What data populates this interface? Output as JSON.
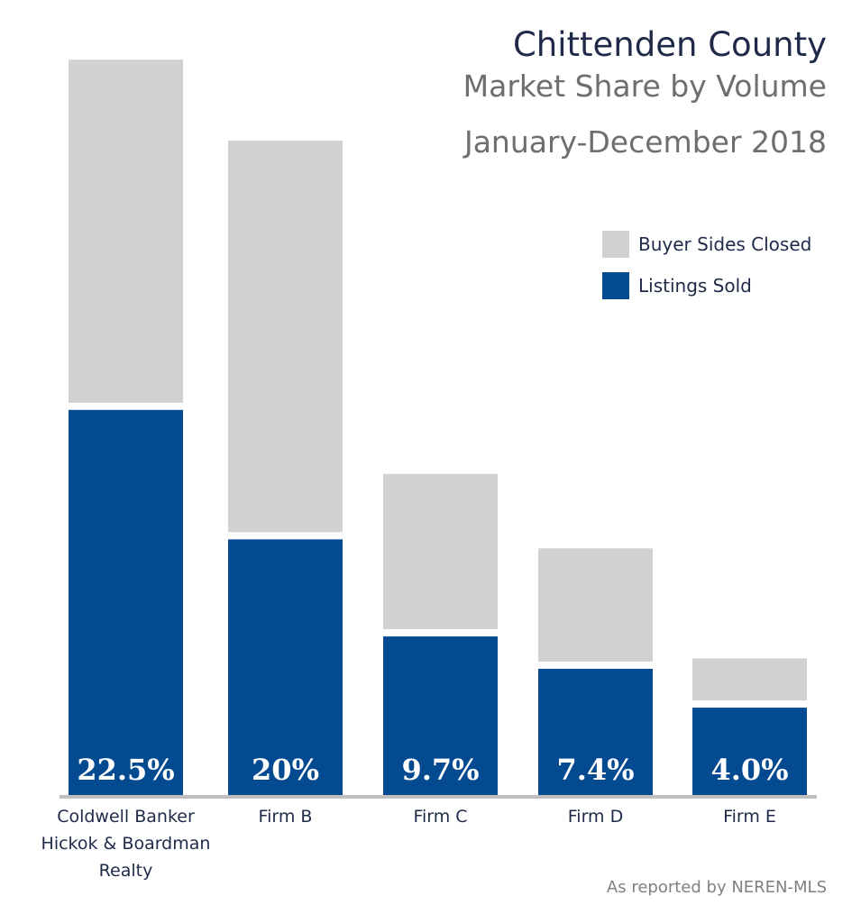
{
  "chart_data": {
    "type": "bar",
    "stacked": true,
    "title": "Chittenden County",
    "subtitle": "Market Share by Volume",
    "period": "January-December 2018",
    "categories": [
      "Coldwell Banker\nHickok & Boardman\nRealty",
      "Firm B",
      "Firm C",
      "Firm D",
      "Firm E"
    ],
    "series": [
      {
        "name": "Listings Sold",
        "color": "#034a91",
        "values": [
          11.9,
          7.9,
          4.9,
          3.9,
          2.7
        ]
      },
      {
        "name": "Buyer Sides Closed",
        "color": "#d0d1d3",
        "values": [
          10.6,
          12.1,
          4.8,
          3.5,
          1.3
        ]
      }
    ],
    "bar_labels": [
      "22.5%",
      "20%",
      "9.7%",
      "7.4%",
      "4.0%"
    ],
    "legend_position": "top-right",
    "grid": false
  },
  "source_note": "As reported by NEREN-MLS"
}
